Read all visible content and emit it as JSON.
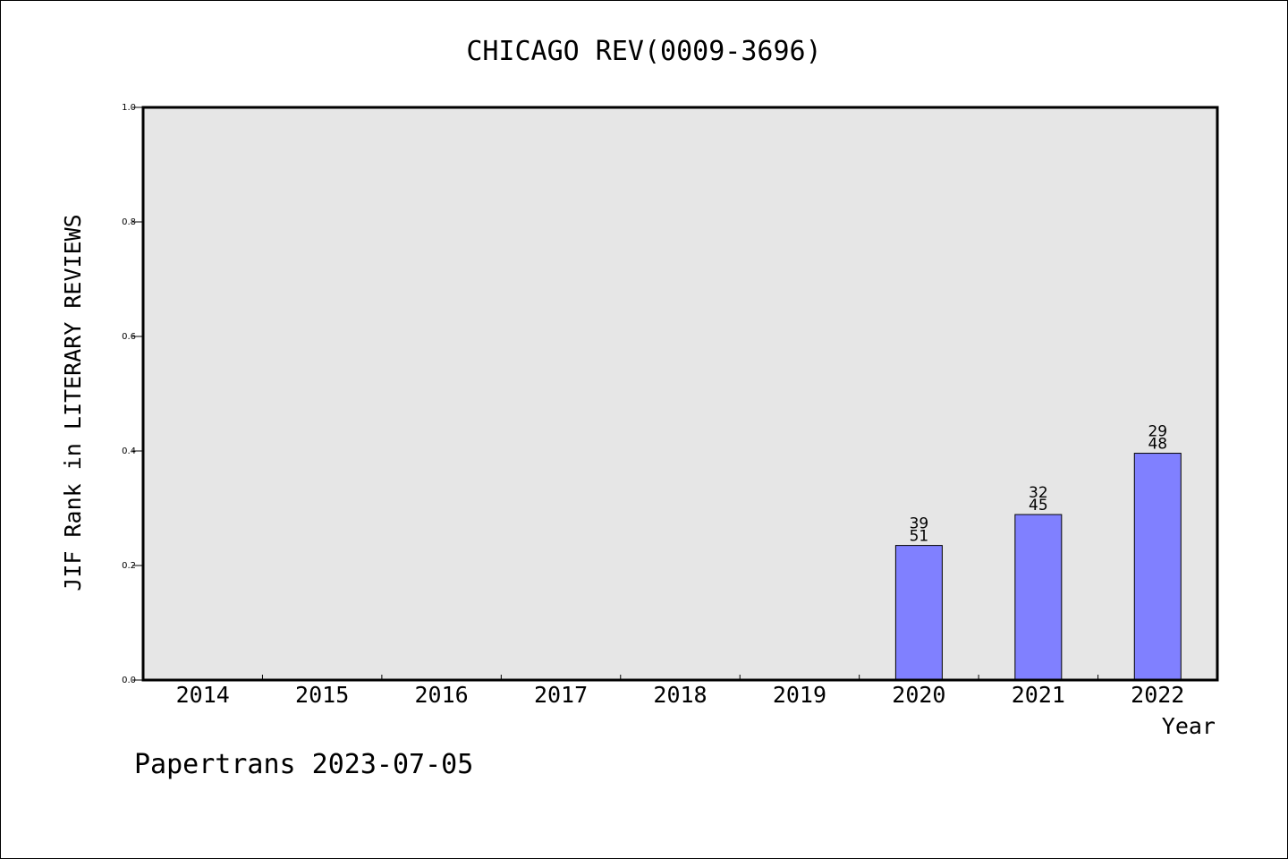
{
  "chart_data": {
    "type": "bar",
    "title": "CHICAGO REV(0009-3696)",
    "xlabel": "Year",
    "ylabel": "JIF Rank in LITERARY REVIEWS",
    "footer": "Papertrans 2023-07-05",
    "categories": [
      "2014",
      "2015",
      "2016",
      "2017",
      "2018",
      "2019",
      "2020",
      "2021",
      "2022"
    ],
    "values": [
      null,
      null,
      null,
      null,
      null,
      null,
      0.235,
      0.289,
      0.396
    ],
    "rank": [
      null,
      null,
      null,
      null,
      null,
      null,
      "39",
      "32",
      "29"
    ],
    "total": [
      null,
      null,
      null,
      null,
      null,
      null,
      "51",
      "45",
      "48"
    ],
    "ylim": [
      0,
      1.0
    ],
    "yticks": [
      "0.0",
      "0.2",
      "0.4",
      "0.6",
      "0.8",
      "1.0"
    ],
    "grid": false,
    "plot_background": "#e6e6e6",
    "bar_color": "#8080ff"
  }
}
